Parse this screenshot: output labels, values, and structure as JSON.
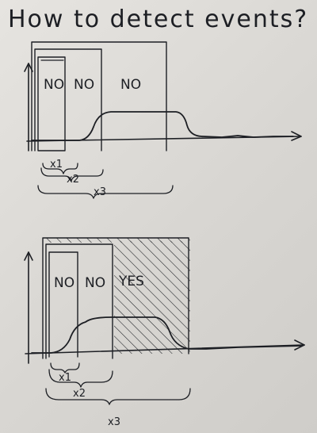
{
  "title": "How to detect events?",
  "diagram_top": {
    "window_labels": [
      "NO",
      "NO",
      "NO"
    ],
    "window_names": [
      "x1",
      "x2",
      "x3"
    ]
  },
  "diagram_bottom": {
    "window_labels": [
      "NO",
      "NO",
      "YES"
    ],
    "window_names": [
      "x1",
      "x2",
      "x3"
    ]
  }
}
